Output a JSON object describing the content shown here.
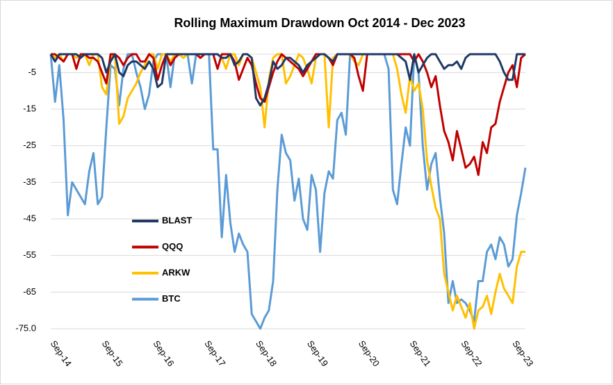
{
  "chart_data": {
    "type": "line",
    "title": "Rolling Maximum Drawdown  Oct 2014 - Dec 2023",
    "categories": [
      "Sep-14",
      null,
      null,
      null,
      null,
      null,
      null,
      null,
      null,
      null,
      null,
      null,
      "Sep-15",
      null,
      null,
      null,
      null,
      null,
      null,
      null,
      null,
      null,
      null,
      null,
      "Sep-16",
      null,
      null,
      null,
      null,
      null,
      null,
      null,
      null,
      null,
      null,
      null,
      "Sep-17",
      null,
      null,
      null,
      null,
      null,
      null,
      null,
      null,
      null,
      null,
      null,
      "Sep-18",
      null,
      null,
      null,
      null,
      null,
      null,
      null,
      null,
      null,
      null,
      null,
      "Sep-19",
      null,
      null,
      null,
      null,
      null,
      null,
      null,
      null,
      null,
      null,
      null,
      "Sep-20",
      null,
      null,
      null,
      null,
      null,
      null,
      null,
      null,
      null,
      null,
      null,
      "Sep-21",
      null,
      null,
      null,
      null,
      null,
      null,
      null,
      null,
      null,
      null,
      null,
      "Sep-22",
      null,
      null,
      null,
      null,
      null,
      null,
      null,
      null,
      null,
      null,
      null,
      "Sep-23",
      null,
      null,
      null
    ],
    "series": [
      {
        "name": "BLAST",
        "color": "#1f3864",
        "values": [
          0,
          -2,
          0,
          0,
          0,
          0,
          0,
          -1,
          0,
          0,
          0,
          0,
          -1,
          -5,
          -2,
          0,
          -5,
          -6,
          -3,
          -2,
          -2,
          -3,
          -4,
          -2,
          -4,
          -9,
          -8,
          0,
          0,
          0,
          0,
          0,
          0,
          0,
          0,
          0,
          0,
          0,
          0,
          0,
          -1,
          -1,
          0,
          -3,
          -2,
          0,
          0,
          -1,
          -12,
          -14,
          -12,
          -8,
          -2,
          -4,
          -3,
          -1,
          -1,
          -2,
          -3,
          -5,
          -3,
          -2,
          -1,
          0,
          0,
          -1,
          -2,
          0,
          0,
          0,
          0,
          0,
          0,
          0,
          0,
          0,
          0,
          0,
          0,
          0,
          0,
          0,
          -1,
          -2,
          -7,
          0,
          -5,
          -3,
          -1,
          0,
          0,
          -2,
          -4,
          -3,
          -3,
          -2,
          -4,
          -1,
          0,
          0,
          0,
          0,
          0,
          0,
          0,
          -2,
          -5,
          -7,
          -7,
          0,
          0,
          0
        ]
      },
      {
        "name": "QQQ",
        "color": "#c00000",
        "values": [
          0,
          0,
          -1,
          -2,
          0,
          0,
          -4,
          0,
          0,
          -1,
          -1,
          -2,
          -5,
          -8,
          0,
          0,
          -1,
          -3,
          -1,
          0,
          0,
          -2,
          -2,
          0,
          -1,
          -7,
          -3,
          0,
          -3,
          -1,
          0,
          0,
          0,
          0,
          0,
          -1,
          0,
          0,
          0,
          -4,
          0,
          0,
          0,
          -2,
          -7,
          -4,
          -1,
          -3,
          -8,
          -12,
          -13,
          -9,
          -5,
          -2,
          0,
          -1,
          -2,
          -3,
          -4,
          -6,
          -4,
          -2,
          0,
          0,
          0,
          -1,
          -3,
          0,
          0,
          0,
          0,
          -1,
          -6,
          -10,
          0,
          0,
          0,
          0,
          0,
          0,
          0,
          0,
          0,
          0,
          0,
          -2,
          0,
          -2,
          -5,
          -9,
          -6,
          -14,
          -21,
          -24,
          -29,
          -21,
          -26,
          -31,
          -30,
          -28,
          -33,
          -24,
          -27,
          -20,
          -19,
          -13,
          -9,
          -5,
          -3,
          -9,
          -1,
          0
        ]
      },
      {
        "name": "ARKW",
        "color": "#ffc000",
        "values": [
          0,
          -1,
          0,
          -2,
          0,
          0,
          -1,
          0,
          0,
          -3,
          0,
          0,
          -9,
          -11,
          -1,
          0,
          -19,
          -17,
          -12,
          -10,
          -8,
          -5,
          -3,
          0,
          0,
          -4,
          0,
          0,
          -2,
          0,
          0,
          -1,
          0,
          0,
          0,
          0,
          0,
          0,
          0,
          0,
          -1,
          -4,
          0,
          0,
          -3,
          0,
          0,
          -1,
          -5,
          -9,
          -20,
          -7,
          -1,
          0,
          0,
          -8,
          -6,
          -3,
          0,
          -1,
          -4,
          -8,
          -1,
          0,
          0,
          -20,
          -1,
          0,
          0,
          0,
          0,
          -2,
          -3,
          0,
          0,
          0,
          0,
          0,
          0,
          0,
          0,
          -4,
          -11,
          -16,
          -6,
          -10,
          -8,
          -15,
          -29,
          -36,
          -42,
          -45,
          -60,
          -65,
          -70,
          -66,
          -69,
          -72,
          -68,
          -75,
          -70,
          -69,
          -66,
          -71,
          -65,
          -60,
          -64,
          -66,
          -68,
          -58,
          -54,
          -54
        ]
      },
      {
        "name": "BTC",
        "color": "#5b9bd5",
        "values": [
          0,
          -13,
          -3,
          -18,
          -44,
          -35,
          -37,
          -39,
          -41,
          -32,
          -27,
          -41,
          -39,
          -20,
          -3,
          -4,
          -14,
          -4,
          0,
          0,
          -5,
          -9,
          -15,
          -11,
          -2,
          0,
          0,
          0,
          -9,
          0,
          0,
          0,
          0,
          -8,
          0,
          0,
          0,
          0,
          -26,
          -26,
          -50,
          -33,
          -46,
          -54,
          -49,
          -52,
          -54,
          -71,
          -73,
          -75,
          -72,
          -70,
          -62,
          -37,
          -22,
          -27,
          -29,
          -40,
          -34,
          -45,
          -48,
          -33,
          -37,
          -54,
          -38,
          -32,
          -34,
          -18,
          -16,
          -22,
          0,
          0,
          0,
          0,
          0,
          0,
          0,
          0,
          0,
          -4,
          -37,
          -41,
          -30,
          -20,
          -25,
          0,
          -5,
          -25,
          -37,
          -30,
          -27,
          -39,
          -49,
          -68,
          -62,
          -68,
          -67,
          -68,
          -70,
          -73,
          -62,
          -62,
          -54,
          -52,
          -56,
          -50,
          -52,
          -58,
          -56,
          -44,
          -38,
          -31
        ]
      }
    ],
    "ylim": [
      -75,
      0
    ],
    "yticks": [
      {
        "value": -75,
        "label": "-75.0"
      },
      -65,
      -55,
      -45,
      -35,
      -25,
      -15,
      -5
    ],
    "grid": true,
    "legend": "left"
  }
}
